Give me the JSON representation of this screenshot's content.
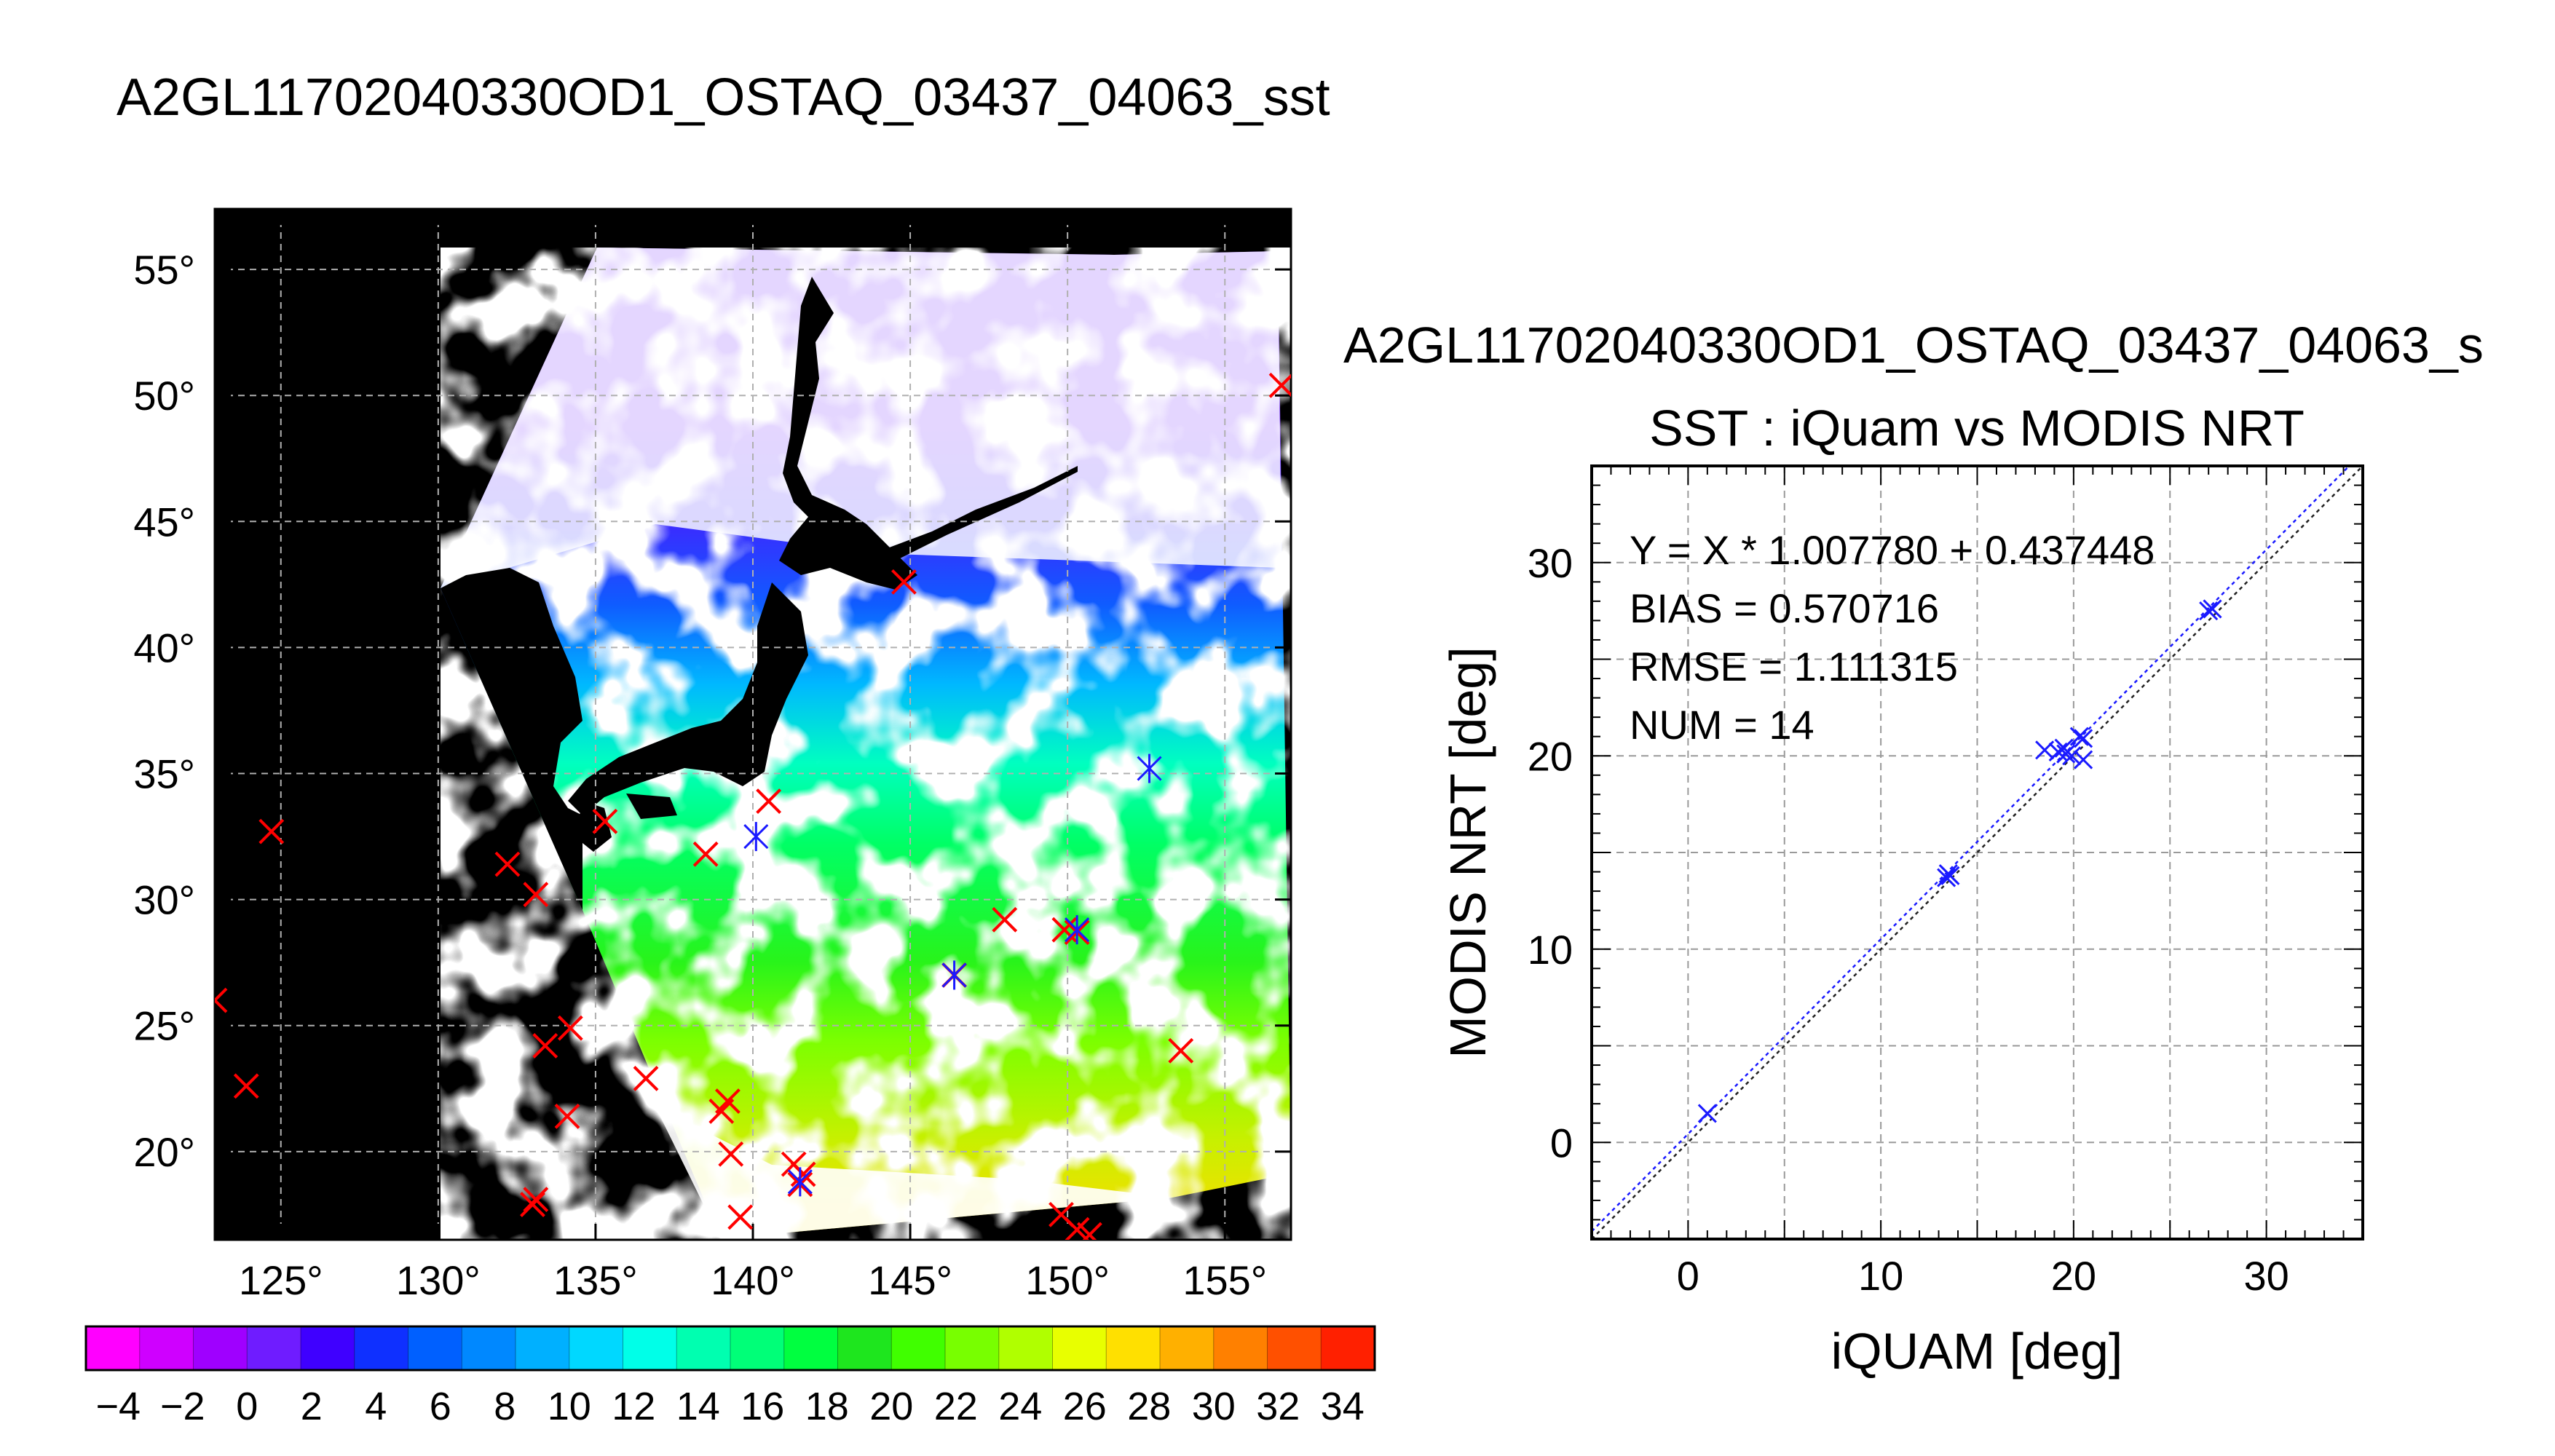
{
  "main_title": "A2GL11702040330OD1_OSTAQ_03437_04063_sst",
  "map": {
    "lon_ticks": [
      125,
      130,
      135,
      140,
      145,
      150,
      155
    ],
    "lat_ticks": [
      20,
      25,
      30,
      35,
      40,
      45,
      50,
      55
    ],
    "lon_range": [
      122.9,
      157.1
    ],
    "lat_range": [
      16.5,
      57.4
    ],
    "degree_mark": "°",
    "colorbar": {
      "range": [
        -5,
        35
      ],
      "labels": [
        "−4",
        "−2",
        "0",
        "2",
        "4",
        "6",
        "8",
        "10",
        "12",
        "14",
        "16",
        "18",
        "20",
        "22",
        "24",
        "26",
        "28",
        "30",
        "32",
        "34"
      ],
      "label_values": [
        -4,
        -2,
        0,
        2,
        4,
        6,
        8,
        10,
        12,
        14,
        16,
        18,
        20,
        22,
        24,
        26,
        28,
        30,
        32,
        34
      ],
      "colors": [
        "#ff00ff",
        "#cf00ff",
        "#9f00ff",
        "#6f1cff",
        "#3f00ff",
        "#0f30ff",
        "#0060ff",
        "#0088ff",
        "#00b0ff",
        "#00d8ff",
        "#00ffe8",
        "#00ffb0",
        "#00ff78",
        "#00ff40",
        "#1ee61e",
        "#40ff00",
        "#78ff00",
        "#b0ff00",
        "#e8ff00",
        "#ffe000",
        "#ffb000",
        "#ff8000",
        "#ff5000",
        "#ff2000"
      ]
    },
    "red_markers": [
      [
        122.9,
        26.0
      ],
      [
        123.9,
        22.6
      ],
      [
        124.7,
        32.7
      ],
      [
        132.2,
        31.4
      ],
      [
        133.1,
        30.2
      ],
      [
        133.4,
        24.2
      ],
      [
        134.2,
        24.9
      ],
      [
        134.1,
        21.4
      ],
      [
        133.0,
        17.9
      ],
      [
        133.1,
        18.1
      ],
      [
        136.6,
        22.9
      ],
      [
        135.3,
        33.1
      ],
      [
        138.5,
        31.8
      ],
      [
        139.0,
        21.6
      ],
      [
        139.2,
        22.0
      ],
      [
        139.3,
        19.9
      ],
      [
        139.6,
        17.4
      ],
      [
        140.5,
        33.9
      ],
      [
        141.3,
        19.5
      ],
      [
        141.5,
        18.7
      ],
      [
        141.6,
        19.1
      ],
      [
        144.8,
        42.6
      ],
      [
        146.4,
        27.0
      ],
      [
        148.0,
        29.2
      ],
      [
        149.9,
        28.8
      ],
      [
        150.3,
        28.7
      ],
      [
        150.3,
        16.9
      ],
      [
        150.7,
        16.7
      ],
      [
        153.6,
        24.0
      ],
      [
        156.8,
        50.4
      ],
      [
        149.8,
        17.5
      ]
    ],
    "blue_markers": [
      [
        140.1,
        32.5
      ],
      [
        146.4,
        27.0
      ],
      [
        150.3,
        28.8
      ],
      [
        152.6,
        35.2
      ],
      [
        141.5,
        18.8
      ]
    ]
  },
  "scatter_title": "A2GL11702040330OD1_OSTAQ_03437_04063_s",
  "chart_data": {
    "type": "scatter",
    "title": "SST : iQuam vs MODIS NRT",
    "xlabel": "iQUAM [deg]",
    "ylabel": "MODIS NRT [deg]",
    "xlim": [
      -5,
      35
    ],
    "ylim": [
      -5,
      35
    ],
    "xticks": [
      0,
      10,
      20,
      30
    ],
    "yticks": [
      0,
      10,
      20,
      30
    ],
    "grid": true,
    "annotations": [
      "Y = X * 1.007780 + 0.437448",
      "BIAS = 0.570716",
      "RMSE = 1.111315",
      "NUM = 14"
    ],
    "fit": {
      "slope": 1.00778,
      "intercept": 0.437448
    },
    "points": [
      {
        "x": 1.0,
        "y": 1.5
      },
      {
        "x": 13.4,
        "y": 13.7
      },
      {
        "x": 13.5,
        "y": 13.9
      },
      {
        "x": 13.6,
        "y": 13.8
      },
      {
        "x": 18.5,
        "y": 20.3
      },
      {
        "x": 19.2,
        "y": 20.2
      },
      {
        "x": 19.5,
        "y": 20.4
      },
      {
        "x": 19.9,
        "y": 20.0
      },
      {
        "x": 19.6,
        "y": 20.1
      },
      {
        "x": 20.3,
        "y": 21.0
      },
      {
        "x": 20.5,
        "y": 20.9
      },
      {
        "x": 20.5,
        "y": 19.8
      },
      {
        "x": 27.2,
        "y": 27.6
      },
      {
        "x": 27.0,
        "y": 27.5
      }
    ]
  }
}
